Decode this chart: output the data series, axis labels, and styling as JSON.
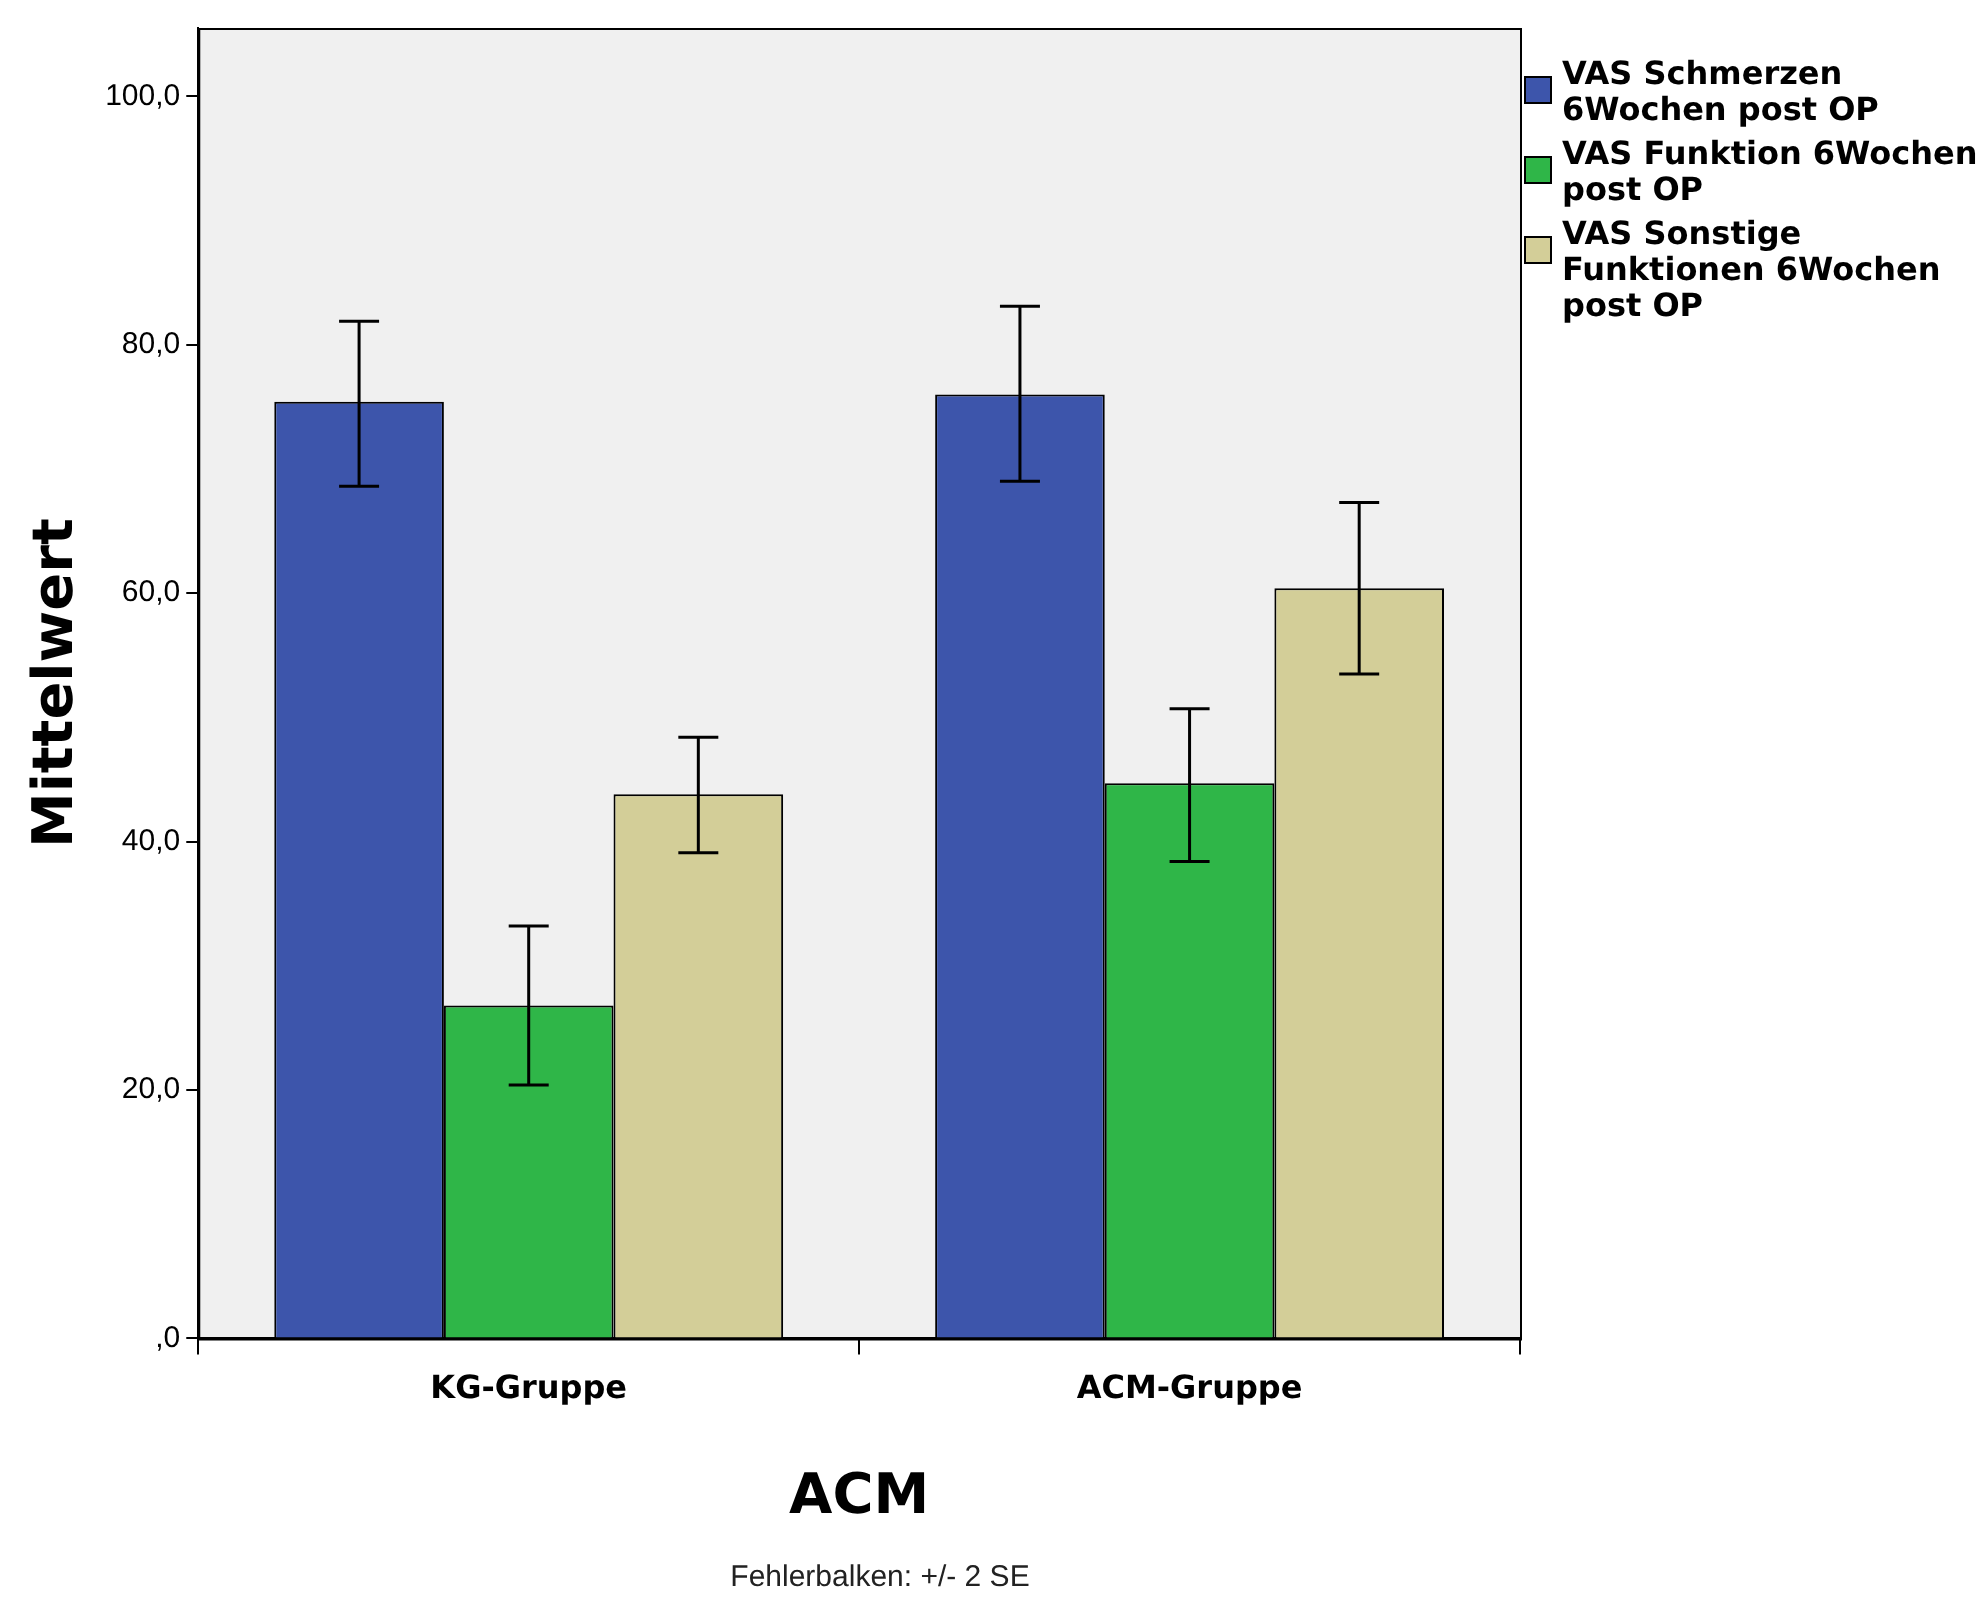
{
  "chart_data": {
    "type": "bar",
    "xlabel": "ACM",
    "ylabel": "Mittelwert",
    "categories": [
      "KG-Gruppe",
      "ACM-Gruppe"
    ],
    "series": [
      {
        "name": "VAS Schmerzen 6Wochen post OP",
        "color": "#3d55ab",
        "values": [
          75.4,
          76.0
        ],
        "errors": [
          [
            68.6,
            81.9
          ],
          [
            69.0,
            83.1
          ]
        ]
      },
      {
        "name": "VAS Funktion 6Wochen post OP",
        "color": "#2fb648",
        "values": [
          26.8,
          44.7
        ],
        "errors": [
          [
            20.4,
            33.2
          ],
          [
            38.4,
            50.7
          ]
        ]
      },
      {
        "name": "VAS Sonstige Funktionen 6Wochen post OP",
        "color": "#d3ce98",
        "values": [
          43.8,
          60.4
        ],
        "errors": [
          [
            39.1,
            48.4
          ],
          [
            53.5,
            67.3
          ]
        ]
      }
    ],
    "ylim": [
      0,
      105.5
    ],
    "yticks": [
      {
        "value": 0,
        "label": ",0"
      },
      {
        "value": 20,
        "label": "20,0"
      },
      {
        "value": 40,
        "label": "40,0"
      },
      {
        "value": 60,
        "label": "60,0"
      },
      {
        "value": 80,
        "label": "80,0"
      },
      {
        "value": 100,
        "label": "100,0"
      }
    ],
    "grid": false,
    "legend": "right",
    "annotations": [
      "Fehlerbalken: +/- 2 SE"
    ]
  }
}
